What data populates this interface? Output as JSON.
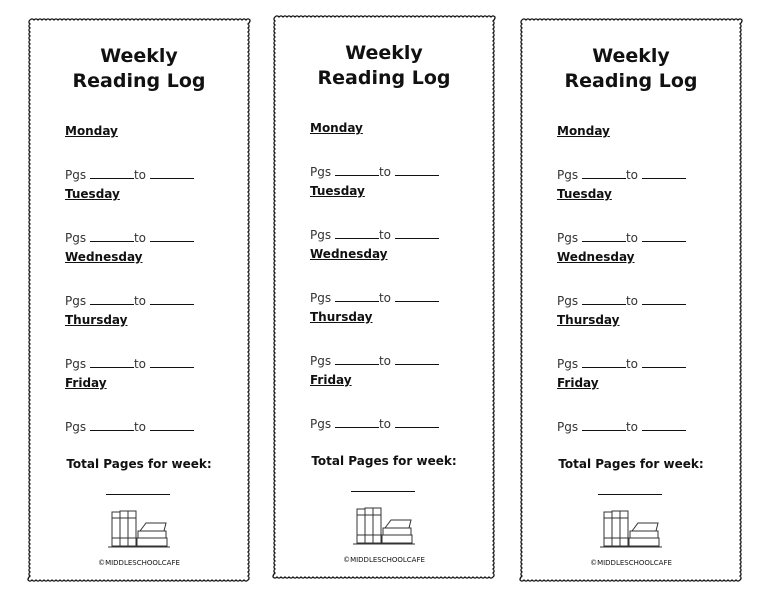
{
  "bookmarks": [
    {
      "title_line1": "Weekly",
      "title_line2": "Reading Log",
      "days": [
        "Monday",
        "Tuesday",
        "Wednesday",
        "Thursday",
        "Friday"
      ],
      "pgs_label": "Pgs",
      "to_label": "to",
      "total_label": "Total Pages for week:",
      "copyright": "©MIDDLESCHOOLCAFE",
      "icon": "books-icon"
    },
    {
      "title_line1": "Weekly",
      "title_line2": "Reading Log",
      "days": [
        "Monday",
        "Tuesday",
        "Wednesday",
        "Thursday",
        "Friday"
      ],
      "pgs_label": "Pgs",
      "to_label": "to",
      "total_label": "Total Pages for week:",
      "copyright": "©MIDDLESCHOOLCAFE",
      "icon": "books-icon"
    },
    {
      "title_line1": "Weekly",
      "title_line2": "Reading Log",
      "days": [
        "Monday",
        "Tuesday",
        "Wednesday",
        "Thursday",
        "Friday"
      ],
      "pgs_label": "Pgs",
      "to_label": "to",
      "total_label": "Total Pages for week:",
      "copyright": "©MIDDLESCHOOLCAFE",
      "icon": "books-icon"
    }
  ]
}
